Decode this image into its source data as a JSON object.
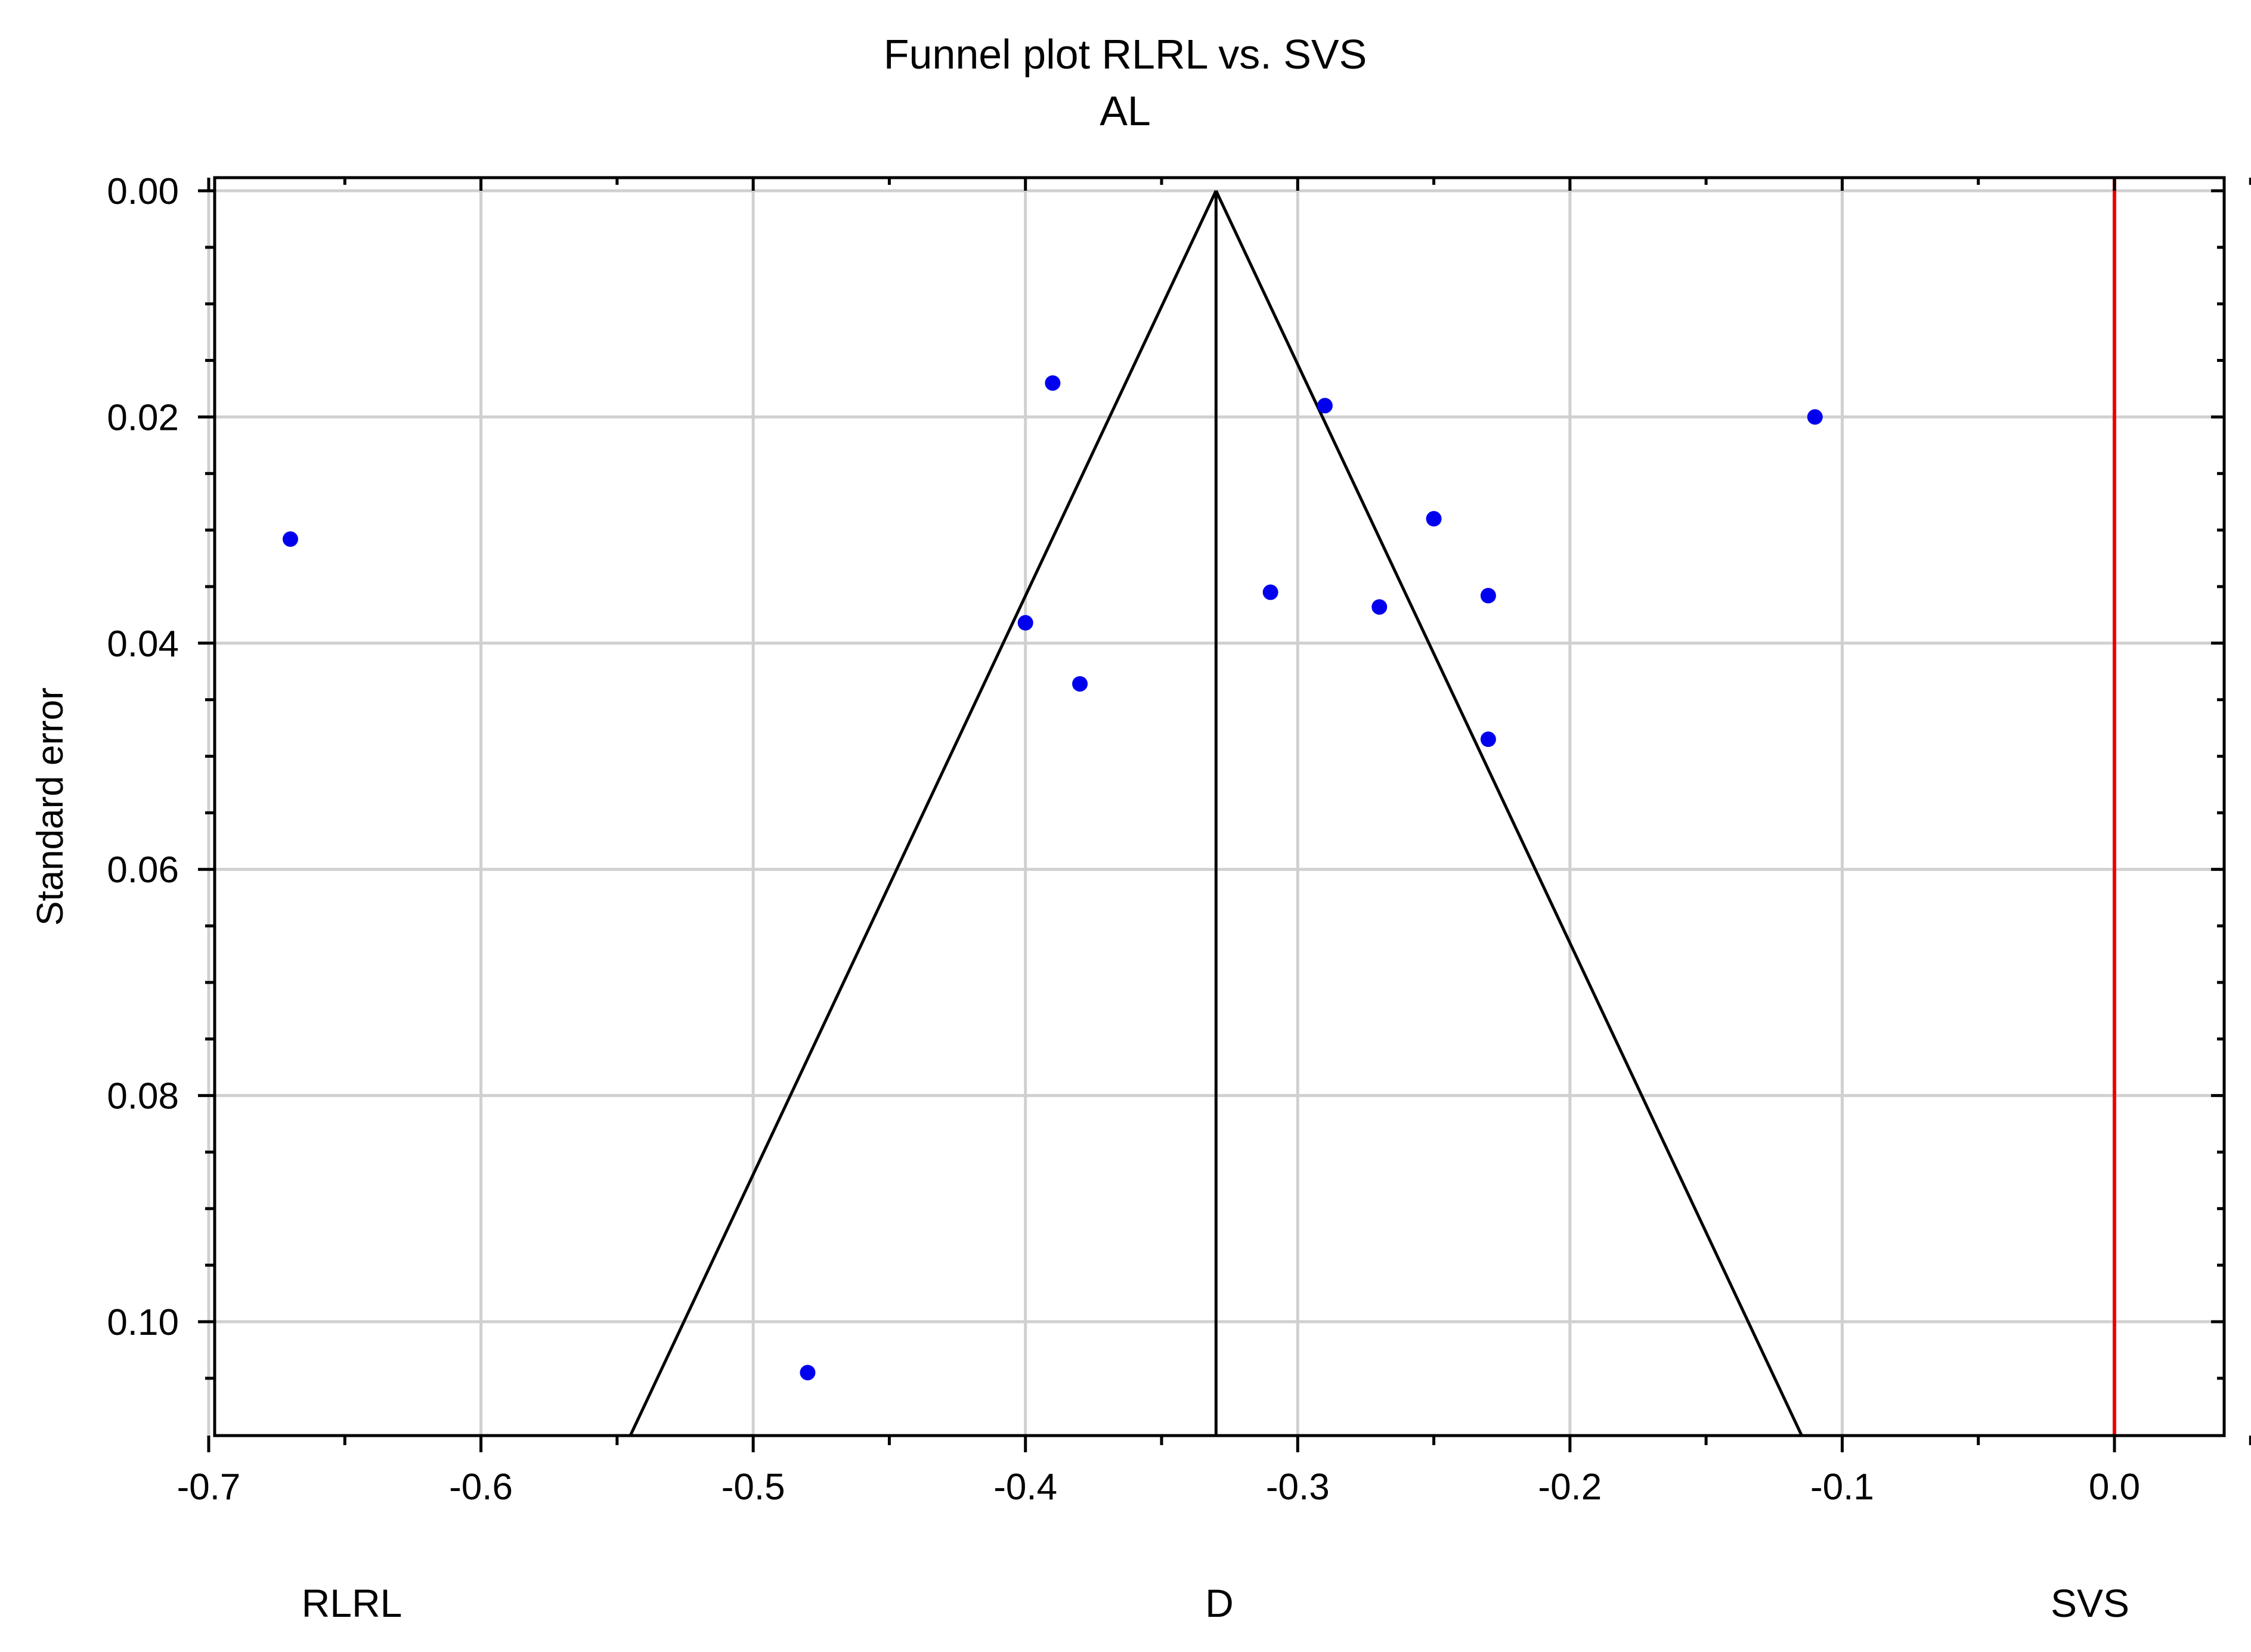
{
  "chart_data": {
    "type": "scatter",
    "title": "Funnel plot RLRL vs. SVS",
    "subtitle": "AL",
    "xlabel": "",
    "ylabel": "Standard error",
    "xlim": [
      -0.7,
      0.04
    ],
    "ylim": [
      0.0,
      0.11
    ],
    "y_inverted": true,
    "grid": true,
    "x_ticks": [
      "-0.7",
      "-0.6",
      "-0.5",
      "-0.4",
      "-0.3",
      "-0.2",
      "-0.1",
      "0.0"
    ],
    "y_ticks": [
      "0.00",
      "0.02",
      "0.04",
      "0.06",
      "0.08",
      "0.10"
    ],
    "bottom_labels": {
      "left": "RLRL",
      "center": "D",
      "right": "SVS"
    },
    "pooled_effect": -0.33,
    "funnel_bottom": {
      "se": 0.11,
      "left_x": -0.545,
      "right_x": -0.115
    },
    "reference_line_x": 0.0,
    "points": [
      {
        "x": -0.67,
        "y": 0.0308
      },
      {
        "x": -0.39,
        "y": 0.017
      },
      {
        "x": -0.4,
        "y": 0.0382
      },
      {
        "x": -0.38,
        "y": 0.0436
      },
      {
        "x": -0.31,
        "y": 0.0355
      },
      {
        "x": -0.29,
        "y": 0.019
      },
      {
        "x": -0.27,
        "y": 0.0368
      },
      {
        "x": -0.25,
        "y": 0.029
      },
      {
        "x": -0.23,
        "y": 0.0358
      },
      {
        "x": -0.23,
        "y": 0.0485
      },
      {
        "x": -0.11,
        "y": 0.02
      },
      {
        "x": -0.48,
        "y": 0.1045
      }
    ],
    "colors": {
      "points": "#0000ee",
      "reference_line": "#ee0000",
      "funnel": "#000000",
      "grid": "#d0d0d0"
    }
  }
}
